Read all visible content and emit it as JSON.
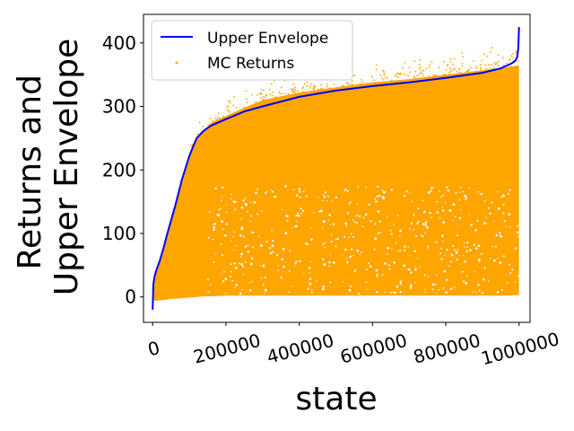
{
  "chart_data": {
    "type": "scatter",
    "xlabel": "state",
    "ylabel": [
      "Returns and",
      "Upper Envelope"
    ],
    "xlim": [
      -25000,
      1030000
    ],
    "ylim": [
      -40,
      445
    ],
    "xticks": [
      0,
      200000,
      400000,
      600000,
      800000,
      1000000
    ],
    "xtick_labels": [
      "0",
      "200000",
      "400000",
      "600000",
      "800000",
      "1000000"
    ],
    "yticks": [
      0,
      100,
      200,
      300,
      400
    ],
    "ytick_labels": [
      "0",
      "100",
      "200",
      "300",
      "400"
    ],
    "grid": false,
    "legend_position": "upper-left",
    "series": [
      {
        "name": "Upper Envelope",
        "kind": "line",
        "color": "#0000ff",
        "x": [
          0,
          2000,
          5000,
          10000,
          20000,
          30000,
          40000,
          50000,
          60000,
          80000,
          100000,
          120000,
          140000,
          160000,
          200000,
          250000,
          300000,
          400000,
          500000,
          600000,
          700000,
          800000,
          900000,
          950000,
          980000,
          990000,
          995000,
          998000,
          1000000
        ],
        "y": [
          -20,
          20,
          32,
          42,
          58,
          78,
          100,
          120,
          140,
          185,
          222,
          250,
          262,
          270,
          280,
          292,
          300,
          315,
          325,
          332,
          338,
          345,
          353,
          360,
          368,
          372,
          378,
          392,
          425
        ]
      },
      {
        "name": "MC Returns",
        "kind": "scatter",
        "color": "#ffa500",
        "band": {
          "x": [
            0,
            10000,
            20000,
            30000,
            40000,
            50000,
            60000,
            80000,
            100000,
            120000,
            140000,
            160000,
            200000,
            250000,
            300000,
            400000,
            500000,
            600000,
            700000,
            800000,
            900000,
            950000,
            1000000
          ],
          "upper": [
            10,
            40,
            56,
            75,
            97,
            117,
            137,
            180,
            218,
            250,
            262,
            275,
            285,
            298,
            310,
            322,
            330,
            338,
            343,
            350,
            357,
            360,
            365
          ],
          "lower": [
            -5,
            -6,
            -5,
            -5,
            -4,
            -3,
            -3,
            -2,
            -1,
            0,
            1,
            1,
            2,
            2,
            2,
            2,
            2,
            2,
            2,
            2,
            2,
            2,
            3
          ]
        },
        "outliers_max": 395
      }
    ]
  }
}
